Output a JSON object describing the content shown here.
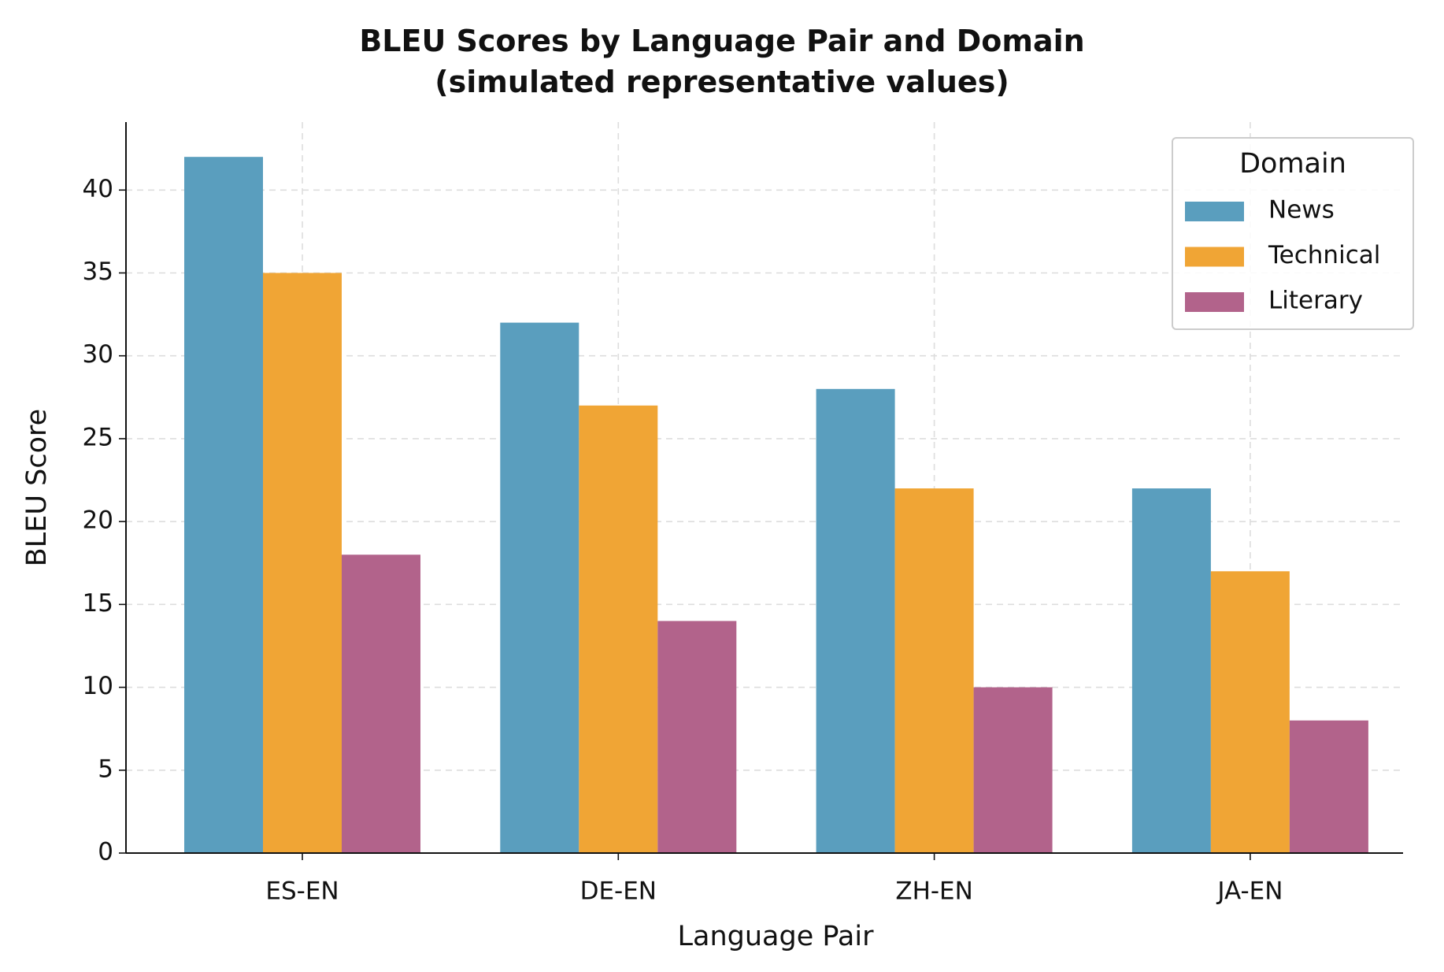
{
  "chart_data": {
    "type": "bar",
    "title": "BLEU Scores by Language Pair and Domain\n(simulated representative values)",
    "x_label": "Language Pair",
    "y_label": "BLEU Score",
    "categories": [
      "ES-EN",
      "DE-EN",
      "ZH-EN",
      "JA-EN"
    ],
    "series": [
      {
        "name": "News",
        "color": "#5a9ebe",
        "values": [
          42,
          32,
          28,
          22
        ]
      },
      {
        "name": "Technical",
        "color": "#f0a535",
        "values": [
          35,
          27,
          22,
          17
        ]
      },
      {
        "name": "Literary",
        "color": "#b2638b",
        "values": [
          18,
          14,
          10,
          8
        ]
      }
    ],
    "ylim": [
      0,
      44.1
    ],
    "yticks": [
      0,
      5,
      10,
      15,
      20,
      25,
      30,
      35,
      40
    ],
    "grid": true,
    "legend_title": "Domain",
    "legend": "upper right"
  }
}
